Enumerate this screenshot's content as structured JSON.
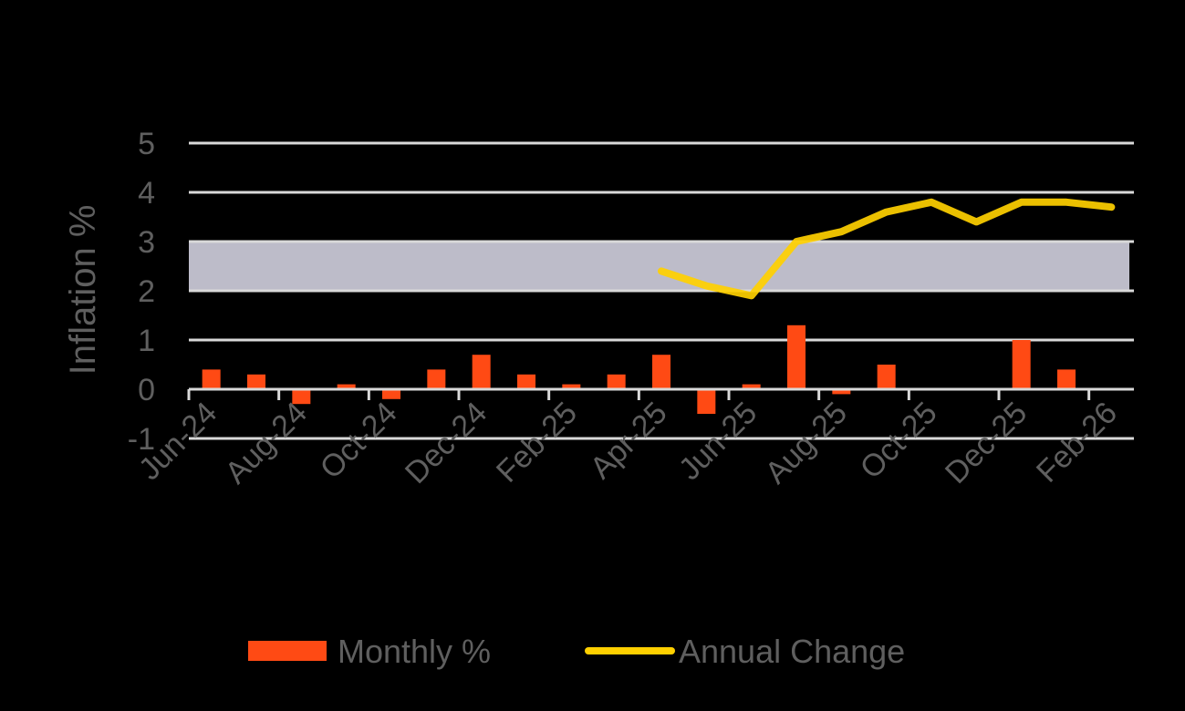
{
  "chart_data": {
    "type": "bar",
    "title": "",
    "xlabel": "",
    "ylabel": "Inflation %",
    "ylim": [
      -1,
      5
    ],
    "yticks": [
      -1,
      0,
      1,
      2,
      3,
      4,
      5
    ],
    "grid": true,
    "legend_position": "bottom",
    "target_band": {
      "from": 2,
      "to": 3,
      "color": "#bdbcc9"
    },
    "categories": [
      "Jun-24",
      "Jul-24",
      "Aug-24",
      "Sep-24",
      "Oct-24",
      "Nov-24",
      "Dec-24",
      "Jan-25",
      "Feb-25",
      "Mar-25",
      "Apr-25",
      "May-25",
      "Jun-25",
      "Jul-25",
      "Aug-25",
      "Sep-25",
      "Oct-25",
      "Nov-25",
      "Dec-25",
      "Jan-26",
      "Feb-26"
    ],
    "tick_labels": [
      "Jun-24",
      "Aug-24",
      "Oct-24",
      "Dec-24",
      "Feb-25",
      "Apr-25",
      "Jun-25",
      "Aug-25",
      "Oct-25",
      "Dec-25",
      "Feb-26"
    ],
    "series": [
      {
        "name": "Monthly %",
        "type": "bar",
        "color": "#ff4a14",
        "values": [
          0.4,
          0.3,
          -0.3,
          0.1,
          -0.2,
          0.4,
          0.7,
          0.3,
          0.1,
          0.3,
          0.7,
          -0.5,
          0.1,
          1.3,
          -0.1,
          0.5,
          0.0,
          0.0,
          1.0,
          0.4,
          0.0
        ]
      },
      {
        "name": "Annual Change",
        "type": "line",
        "color": "#ffd000",
        "values": [
          null,
          null,
          null,
          null,
          null,
          null,
          null,
          null,
          null,
          null,
          2.4,
          2.1,
          1.9,
          3.0,
          3.2,
          3.6,
          3.8,
          3.4,
          3.8,
          3.8,
          3.7
        ]
      }
    ]
  },
  "legend": {
    "monthly_label": "Monthly %",
    "annual_label": "Annual Change"
  }
}
